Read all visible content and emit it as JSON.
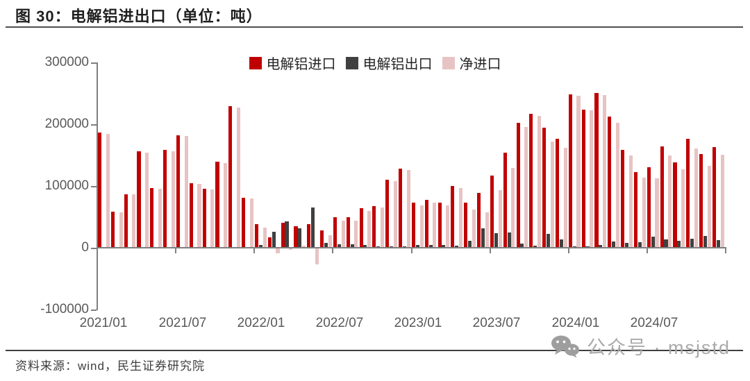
{
  "header": {
    "title": "图 30：电解铝进出口（单位：吨）"
  },
  "legend": {
    "items": [
      {
        "label": "电解铝进口",
        "color": "#C00000"
      },
      {
        "label": "电解铝出口",
        "color": "#404040"
      },
      {
        "label": "净进口",
        "color": "#E8C3C3"
      }
    ]
  },
  "chart_data": {
    "type": "bar",
    "title": "电解铝进出口",
    "unit": "吨",
    "grid": false,
    "legend_position": "top",
    "ylim": [
      -100000,
      300000
    ],
    "y_tick_labels": [
      "300000",
      "200000",
      "100000",
      "0",
      "-100000"
    ],
    "x_tick_labels": [
      "2021/01",
      "2021/07",
      "2022/01",
      "2022/07",
      "2023/01",
      "2023/07",
      "2024/01",
      "2024/07"
    ],
    "x": [
      "2021/01",
      "2021/02",
      "2021/03",
      "2021/04",
      "2021/05",
      "2021/06",
      "2021/07",
      "2021/08",
      "2021/09",
      "2021/10",
      "2021/11",
      "2021/12",
      "2022/01",
      "2022/02",
      "2022/03",
      "2022/04",
      "2022/05",
      "2022/06",
      "2022/07",
      "2022/08",
      "2022/09",
      "2022/10",
      "2022/11",
      "2022/12",
      "2023/01",
      "2023/02",
      "2023/03",
      "2023/04",
      "2023/05",
      "2023/06",
      "2023/07",
      "2023/08",
      "2023/09",
      "2023/10",
      "2023/11",
      "2023/12",
      "2024/01",
      "2024/02",
      "2024/03",
      "2024/04",
      "2024/05",
      "2024/06",
      "2024/07",
      "2024/08",
      "2024/09",
      "2024/10",
      "2024/11",
      "2024/12"
    ],
    "series": [
      {
        "name": "电解铝进口",
        "color": "#C00000",
        "values": [
          186000,
          58000,
          87000,
          156000,
          97000,
          158000,
          182000,
          104000,
          95000,
          139000,
          229000,
          81000,
          38000,
          17000,
          40000,
          35000,
          38000,
          28000,
          50000,
          50000,
          64000,
          67000,
          110000,
          128000,
          73000,
          77000,
          73000,
          100000,
          73000,
          89000,
          117000,
          154000,
          202000,
          217000,
          194000,
          176000,
          248000,
          224000,
          251000,
          212000,
          158000,
          122000,
          130000,
          164000,
          138000,
          176000,
          152000,
          163000
        ]
      },
      {
        "name": "电解铝出口",
        "color": "#404040",
        "values": [
          1500,
          1000,
          1000,
          1500,
          1000,
          1500,
          1500,
          1000,
          1000,
          1500,
          1500,
          1500,
          5000,
          26000,
          43000,
          32000,
          65000,
          8000,
          6000,
          6000,
          4000,
          2000,
          2500,
          2500,
          4000,
          4000,
          5000,
          3500,
          11000,
          32000,
          24000,
          25000,
          7000,
          3000,
          22000,
          14000,
          2000,
          2000,
          4000,
          10000,
          8000,
          9000,
          18000,
          14000,
          11000,
          15000,
          19000,
          12000
        ]
      },
      {
        "name": "净进口",
        "color": "#E8C3C3",
        "values": [
          184500,
          57000,
          86000,
          154500,
          96000,
          156500,
          180500,
          103000,
          94000,
          137500,
          227500,
          79500,
          33000,
          -9000,
          -3000,
          3000,
          -27000,
          20000,
          44000,
          44000,
          60000,
          65000,
          107500,
          125500,
          69000,
          73000,
          68000,
          96500,
          62000,
          57000,
          93000,
          129000,
          195000,
          214000,
          172000,
          162000,
          246000,
          222000,
          247000,
          202000,
          150000,
          113000,
          112000,
          150000,
          127000,
          161000,
          133000,
          151000
        ]
      }
    ]
  },
  "footer": {
    "source": "资料来源：wind，民生证券研究院"
  },
  "watermark": {
    "text": "公众号 · msjstd",
    "icon": "wechat-icon"
  }
}
